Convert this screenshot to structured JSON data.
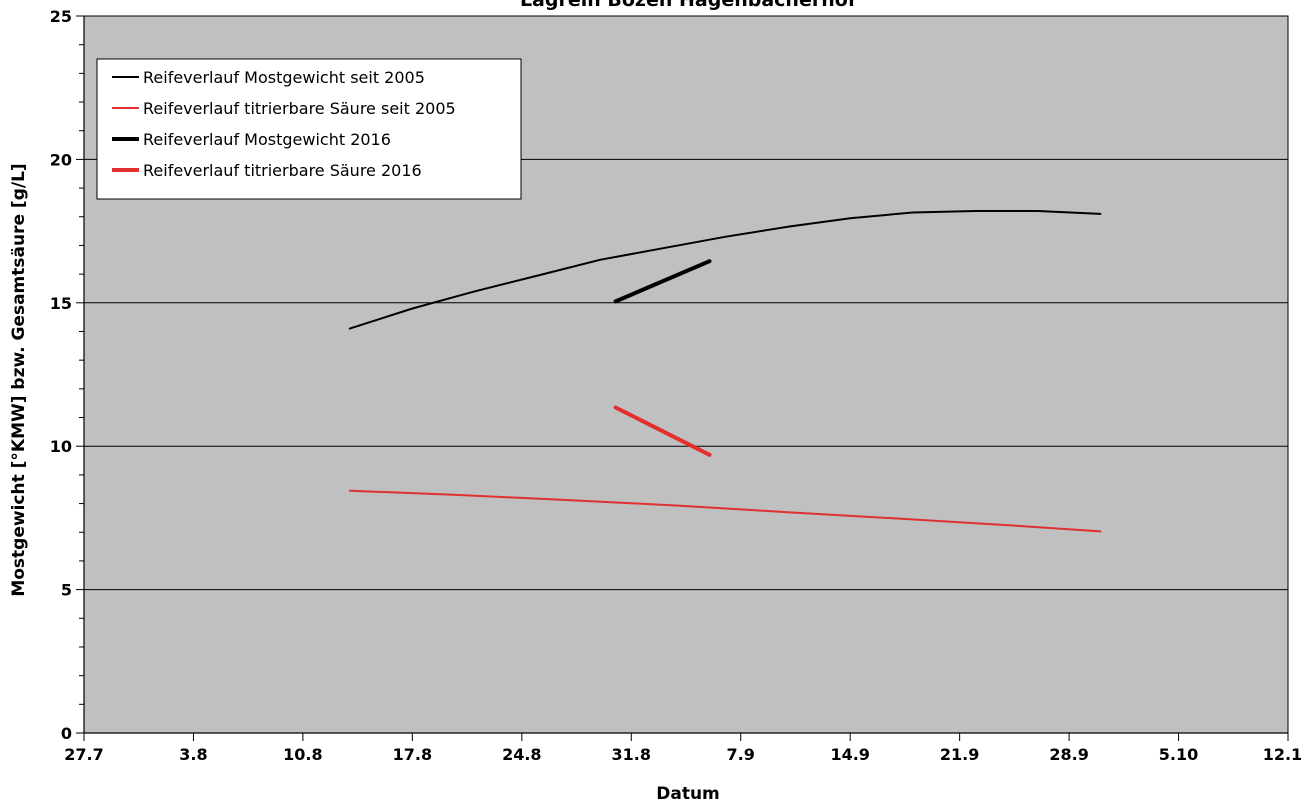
{
  "chart_data": {
    "type": "line",
    "title": "Lagrein Bozen Hagenbacherhof",
    "xlabel": "Datum",
    "ylabel": "Mostgewicht [°KMW] bzw. Gesamtsäure [g/L]",
    "x_tick_labels": [
      "27.7",
      "3.8",
      "10.8",
      "17.8",
      "24.8",
      "31.8",
      "7.9",
      "14.9",
      "21.9",
      "28.9",
      "5.10",
      "12.10"
    ],
    "x_tick_dates": [
      "07-27",
      "08-03",
      "08-10",
      "08-17",
      "08-24",
      "08-31",
      "09-07",
      "09-14",
      "09-21",
      "09-28",
      "10-05",
      "10-12"
    ],
    "ylim": [
      0,
      25
    ],
    "y_ticks": [
      0,
      5,
      10,
      15,
      20,
      25
    ],
    "grid": true,
    "legend_position": "top-left",
    "series": [
      {
        "name": "Reifeverlauf Mostgewicht seit 2005",
        "color": "#000000",
        "thick": false,
        "x": [
          "08-13",
          "08-17",
          "08-21",
          "08-25",
          "08-29",
          "09-02",
          "09-06",
          "09-10",
          "09-14",
          "09-18",
          "09-22",
          "09-26",
          "09-30"
        ],
        "y": [
          14.1,
          14.8,
          15.4,
          15.95,
          16.5,
          16.9,
          17.3,
          17.65,
          17.95,
          18.15,
          18.2,
          18.2,
          18.1
        ]
      },
      {
        "name": "Reifeverlauf titrierbare Säure seit 2005",
        "color": "#e03030",
        "thick": false,
        "x": [
          "08-13",
          "08-20",
          "08-27",
          "09-03",
          "09-10",
          "09-17",
          "09-24",
          "09-30"
        ],
        "y": [
          8.45,
          8.3,
          8.12,
          7.93,
          7.7,
          7.48,
          7.25,
          7.03
        ]
      },
      {
        "name": "Reifeverlauf Mostgewicht 2016",
        "color": "#000000",
        "thick": true,
        "x": [
          "08-30",
          "09-05"
        ],
        "y": [
          15.05,
          16.45
        ]
      },
      {
        "name": "Reifeverlauf titrierbare Säure 2016",
        "color": "#e03030",
        "thick": true,
        "x": [
          "08-30",
          "09-05"
        ],
        "y": [
          11.35,
          9.7
        ]
      }
    ]
  }
}
